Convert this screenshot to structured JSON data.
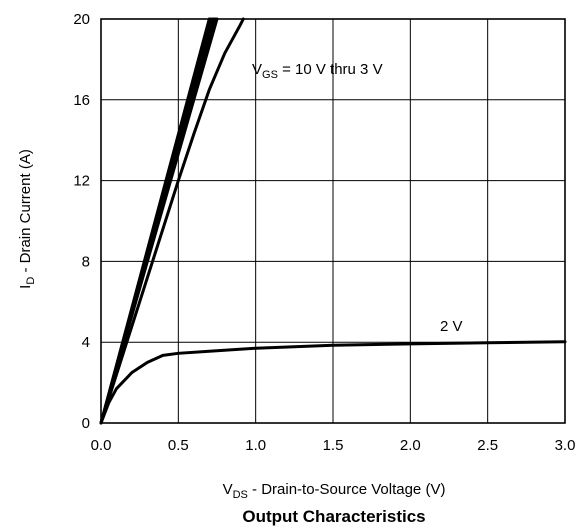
{
  "chart_data": {
    "type": "line",
    "title": "Output Characteristics",
    "xlabel": {
      "main": "V",
      "sub": "DS",
      "rest": " - Drain-to-Source Voltage (V)"
    },
    "ylabel": {
      "main": "I",
      "sub": "D",
      "rest": " - Drain Current (A)"
    },
    "xlim": [
      0.0,
      3.0
    ],
    "ylim": [
      0,
      20
    ],
    "xticks": [
      "0.0",
      "0.5",
      "1.0",
      "1.5",
      "2.0",
      "2.5",
      "3.0"
    ],
    "yticks": [
      "0",
      "4",
      "8",
      "12",
      "16",
      "20"
    ],
    "grid": true,
    "annotations": {
      "vgs_group": {
        "main": "V",
        "sub": "GS",
        "rest": " = 10 V thru 3 V"
      },
      "vgs_2v": "2 V"
    },
    "series": [
      {
        "x": [
          0,
          0.7
        ],
        "y": [
          0,
          20
        ]
      },
      {
        "x": [
          0,
          0.71
        ],
        "y": [
          0,
          20
        ]
      },
      {
        "x": [
          0,
          0.72
        ],
        "y": [
          0,
          20
        ]
      },
      {
        "x": [
          0,
          0.73
        ],
        "y": [
          0,
          20
        ]
      },
      {
        "x": [
          0,
          0.74
        ],
        "y": [
          0,
          20
        ]
      },
      {
        "x": [
          0,
          0.75
        ],
        "y": [
          0,
          20
        ]
      },
      {
        "x": [
          0,
          0.1,
          0.2,
          0.3,
          0.4,
          0.5,
          0.6,
          0.7,
          0.8,
          0.9,
          0.92
        ],
        "y": [
          0,
          2.4,
          4.8,
          7.2,
          9.6,
          12.0,
          14.3,
          16.5,
          18.3,
          19.7,
          20
        ]
      },
      {
        "x": [
          0,
          0.05,
          0.1,
          0.2,
          0.3,
          0.4,
          0.5,
          0.7,
          1.0,
          1.5,
          2.0,
          2.5,
          3.0
        ],
        "y": [
          0,
          1.0,
          1.7,
          2.5,
          3.0,
          3.35,
          3.45,
          3.55,
          3.7,
          3.85,
          3.92,
          3.97,
          4.02
        ]
      }
    ]
  }
}
